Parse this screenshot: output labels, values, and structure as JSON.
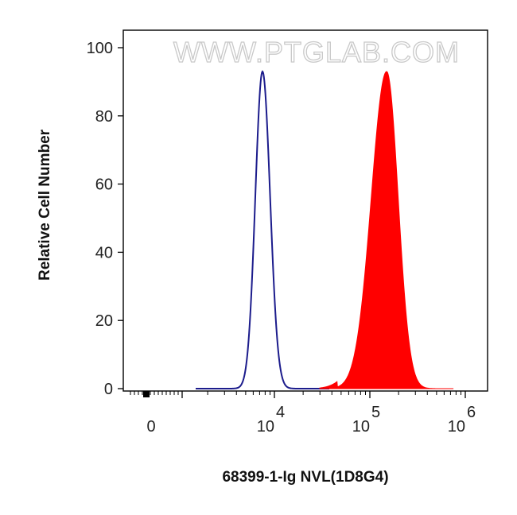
{
  "watermark": "WWW.PTGLAB.COM",
  "chart_data": {
    "type": "histogram",
    "xlabel": "68399-1-Ig NVL(1D8G4)",
    "ylabel": "Relative Cell Number",
    "x_scale": "biexponential (log)",
    "y_range": [
      0,
      100
    ],
    "y_ticks": [
      0,
      20,
      40,
      60,
      80,
      100
    ],
    "x_ticks": [
      {
        "base": "0",
        "exp": "",
        "value": 0
      },
      {
        "base": "10",
        "exp": "4",
        "value": 10000
      },
      {
        "base": "10",
        "exp": "5",
        "value": 100000
      },
      {
        "base": "10",
        "exp": "6",
        "value": 1000000
      }
    ],
    "series": [
      {
        "type": "outline",
        "color": "#1c1c8c",
        "peak_x": 7500,
        "peak_y": 93
      },
      {
        "type": "filled",
        "color": "#ff0000",
        "peak_x": 150000,
        "peak_y": 93
      }
    ]
  }
}
